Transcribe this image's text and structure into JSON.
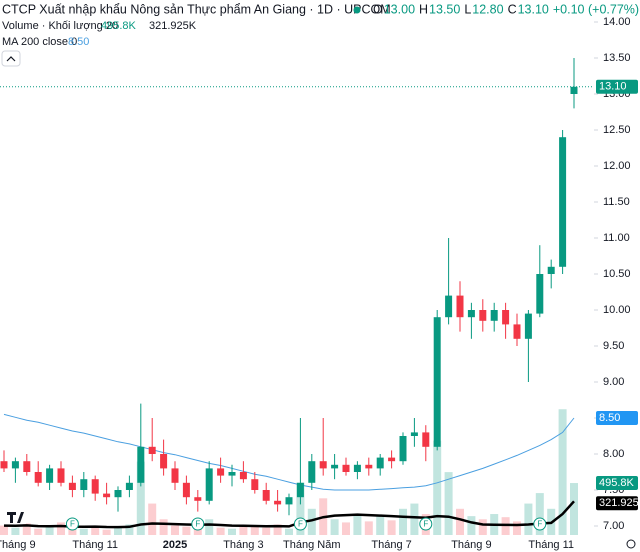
{
  "chart_data": {
    "type": "candlestick",
    "title": "CTCP Xuất nhập khẩu Nông sản Thực phẩm An Giang · 1D · UPCOM",
    "ohlc_legend": [
      {
        "name": "O",
        "value": {
          "value": 13,
          "label": "13.00"
        }
      },
      {
        "name": "H",
        "value": {
          "value": 13.5,
          "label": "13.50"
        }
      },
      {
        "name": "L",
        "value": {
          "value": 12.8,
          "label": "12.80"
        }
      },
      {
        "name": "C",
        "value": {
          "value": 13.1,
          "label": "13.10"
        }
      }
    ],
    "change": "+0.10 (+0.77%)",
    "volume_legend": "Volume · Khối lượng 20",
    "volume_value": {
      "value": 495800,
      "label": "495.8K"
    },
    "volume_ma_value": {
      "value": 321925,
      "label": "321.925K"
    },
    "ma_legend": "MA 200 close 0",
    "ma_value": {
      "value": 8.5,
      "label": "8.50"
    },
    "last_price": {
      "value": 13.1,
      "label": "13.10"
    },
    "up_color": "#089981",
    "down_color": "#f23645",
    "ma_color": "#4a9fe0",
    "volume_ma_color": "#000000",
    "categories": [
      null,
      "Tháng 9",
      null,
      null,
      null,
      null,
      null,
      null,
      "Tháng 11",
      null,
      null,
      null,
      null,
      null,
      null,
      "2025",
      null,
      null,
      null,
      null,
      null,
      "Tháng 3",
      null,
      null,
      null,
      null,
      null,
      "Tháng Năm",
      null,
      null,
      null,
      null,
      null,
      null,
      "Tháng 7",
      null,
      null,
      null,
      null,
      null,
      null,
      "Tháng 9",
      null,
      null,
      null,
      null,
      null,
      null,
      "Tháng 11",
      null,
      null
    ],
    "open": [
      7.9,
      7.8,
      7.9,
      7.75,
      7.6,
      7.8,
      7.6,
      7.5,
      7.65,
      7.45,
      7.4,
      7.5,
      7.6,
      8.1,
      8.0,
      7.8,
      7.6,
      7.4,
      7.35,
      7.8,
      7.7,
      7.75,
      7.65,
      7.5,
      7.35,
      7.3,
      7.4,
      7.6,
      7.9,
      7.8,
      7.85,
      7.75,
      7.85,
      7.8,
      7.95,
      7.9,
      8.25,
      8.3,
      8.1,
      9.9,
      10.2,
      9.9,
      10.0,
      9.85,
      10.0,
      9.8,
      9.6,
      9.95,
      10.5,
      10.6,
      13.0
    ],
    "high": [
      8.05,
      7.95,
      8.0,
      7.9,
      7.85,
      7.9,
      7.7,
      7.75,
      7.7,
      7.6,
      7.55,
      7.7,
      8.7,
      8.5,
      8.2,
      7.9,
      7.7,
      7.5,
      7.9,
      7.95,
      7.85,
      7.9,
      7.75,
      7.6,
      7.5,
      7.45,
      8.5,
      8.0,
      8.5,
      8.0,
      7.95,
      7.9,
      7.95,
      8.0,
      8.05,
      8.3,
      8.5,
      8.4,
      10.0,
      11.0,
      10.4,
      10.1,
      10.15,
      10.1,
      10.1,
      9.95,
      10.0,
      10.9,
      10.7,
      12.5,
      13.5
    ],
    "low": [
      7.75,
      7.6,
      7.7,
      7.55,
      7.5,
      7.55,
      7.4,
      7.4,
      7.35,
      7.3,
      7.2,
      7.4,
      7.55,
      7.9,
      7.7,
      7.5,
      7.3,
      7.2,
      7.3,
      7.6,
      7.55,
      7.6,
      7.45,
      7.3,
      7.2,
      7.15,
      7.3,
      7.5,
      7.7,
      7.65,
      7.7,
      7.65,
      7.7,
      7.7,
      7.8,
      7.85,
      8.1,
      7.9,
      8.05,
      9.8,
      9.7,
      9.6,
      9.7,
      9.7,
      9.6,
      9.5,
      9.0,
      9.9,
      10.3,
      10.5,
      12.8
    ],
    "close": [
      7.8,
      7.9,
      7.75,
      7.6,
      7.8,
      7.6,
      7.5,
      7.65,
      7.45,
      7.4,
      7.5,
      7.6,
      8.1,
      8.0,
      7.8,
      7.6,
      7.4,
      7.35,
      7.8,
      7.7,
      7.75,
      7.65,
      7.5,
      7.35,
      7.3,
      7.4,
      7.6,
      7.9,
      7.8,
      7.85,
      7.75,
      7.85,
      7.8,
      7.95,
      7.9,
      8.25,
      8.3,
      8.1,
      9.9,
      10.2,
      9.9,
      10.0,
      9.85,
      10.0,
      9.8,
      9.6,
      9.95,
      10.5,
      10.6,
      12.4,
      13.1
    ],
    "volume": [
      90000,
      70000,
      110000,
      60000,
      80000,
      120000,
      70000,
      60000,
      90000,
      50000,
      80000,
      100000,
      700000,
      300000,
      150000,
      90000,
      80000,
      120000,
      150000,
      70000,
      60000,
      90000,
      80000,
      70000,
      100000,
      60000,
      500000,
      250000,
      350000,
      150000,
      120000,
      200000,
      130000,
      180000,
      140000,
      250000,
      300000,
      200000,
      900000,
      600000,
      250000,
      180000,
      150000,
      200000,
      170000,
      130000,
      300000,
      400000,
      250000,
      1200000,
      495800
    ],
    "volume_ma": [
      90000,
      88000,
      92000,
      85000,
      84000,
      86000,
      80000,
      78000,
      80000,
      76000,
      75000,
      78000,
      100000,
      110000,
      108000,
      104000,
      100000,
      98000,
      100000,
      95000,
      90000,
      88000,
      86000,
      84000,
      85000,
      82000,
      120000,
      140000,
      170000,
      185000,
      190000,
      195000,
      190000,
      185000,
      180000,
      175000,
      170000,
      165000,
      180000,
      175000,
      150000,
      120000,
      100000,
      98000,
      96000,
      95000,
      100000,
      110000,
      115000,
      200000,
      321925
    ],
    "ma": [
      8.55,
      8.51,
      8.47,
      8.44,
      8.4,
      8.36,
      8.32,
      8.29,
      8.25,
      8.21,
      8.17,
      8.14,
      8.1,
      8.06,
      8.02,
      7.99,
      7.95,
      7.91,
      7.87,
      7.84,
      7.8,
      7.76,
      7.72,
      7.69,
      7.65,
      7.61,
      7.57,
      7.54,
      7.51,
      7.5,
      7.5,
      7.5,
      7.5,
      7.51,
      7.52,
      7.53,
      7.54,
      7.56,
      7.6,
      7.65,
      7.7,
      7.75,
      7.8,
      7.86,
      7.92,
      7.98,
      8.05,
      8.12,
      8.2,
      8.3,
      8.5
    ],
    "event_markers": [
      null,
      null,
      null,
      null,
      null,
      null,
      "F",
      null,
      null,
      null,
      null,
      null,
      null,
      null,
      null,
      null,
      null,
      "F",
      null,
      null,
      null,
      null,
      null,
      null,
      null,
      null,
      "F",
      null,
      null,
      null,
      null,
      null,
      null,
      null,
      null,
      null,
      null,
      "F",
      null,
      null,
      null,
      null,
      null,
      null,
      null,
      null,
      null,
      "F",
      null,
      null,
      null
    ],
    "ylim": [
      7,
      14
    ],
    "volume_ylim": [
      0,
      5000000
    ],
    "yticks": [
      {
        "value": 7,
        "label": "7.00"
      },
      {
        "value": 7.5,
        "label": "7.50"
      },
      {
        "value": 8,
        "label": "8.00"
      },
      {
        "value": 8.5,
        "label": "8.50"
      },
      {
        "value": 9,
        "label": "9.00"
      },
      {
        "value": 9.5,
        "label": "9.50"
      },
      {
        "value": 10,
        "label": "10.00"
      },
      {
        "value": 10.5,
        "label": "10.50"
      },
      {
        "value": 11,
        "label": "11.00"
      },
      {
        "value": 11.5,
        "label": "11.50"
      },
      {
        "value": 12,
        "label": "12.00"
      },
      {
        "value": 12.5,
        "label": "12.50"
      },
      {
        "value": 13,
        "label": "13.00"
      },
      {
        "value": 13.5,
        "label": "13.50"
      },
      {
        "value": 14,
        "label": "14.00"
      }
    ]
  }
}
